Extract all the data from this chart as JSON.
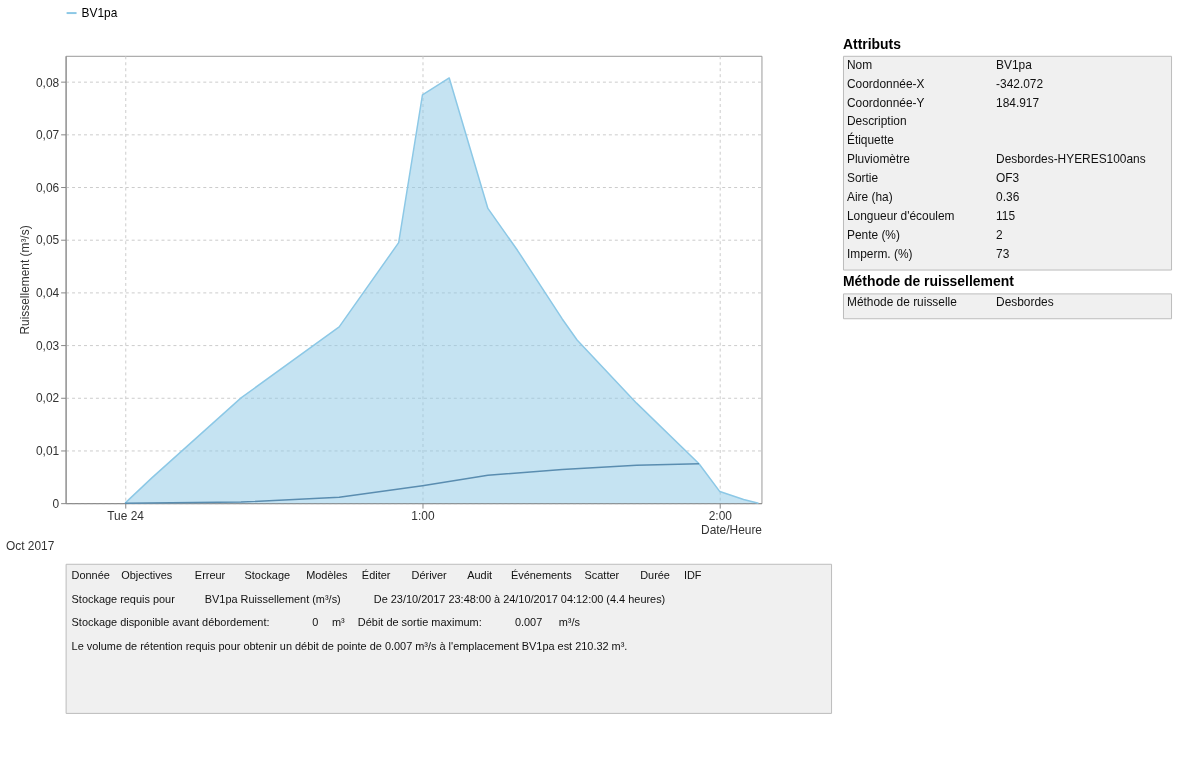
{
  "chart_data": [
    {
      "type": "area",
      "xlabel": "Date/Heure",
      "ylabel": "Ruissellement (m³/s)",
      "x": [
        0,
        0.09,
        0.39,
        0.72,
        0.92,
        1.0,
        1.09,
        1.22,
        1.32,
        1.47,
        1.52,
        1.72,
        1.93,
        2.0,
        2.08,
        2.13
      ],
      "series": [
        {
          "name": "BV1pa",
          "color": "#8cc8e6",
          "values": [
            0,
            0.0048,
            0.02,
            0.0335,
            0.0495,
            0.0776,
            0.0808,
            0.056,
            0.048,
            0.035,
            0.031,
            0.019,
            0.0075,
            0.0022,
            0.0007,
            0
          ]
        },
        {
          "type": "line",
          "color": "#5a8db0",
          "x": [
            0,
            0.39,
            0.72,
            1.0,
            1.22,
            1.47,
            1.72,
            1.93
          ],
          "values": [
            0,
            0.0002,
            0.0011,
            0.0033,
            0.0053,
            0.0064,
            0.0072,
            0.0075
          ]
        }
      ],
      "xlim": [
        -0.2,
        2.14
      ],
      "xticks": [
        {
          "value": 0,
          "label": "Tue 24"
        },
        {
          "value": 1,
          "label": "1:00"
        },
        {
          "value": 2,
          "label": "2:00"
        }
      ],
      "ylim": [
        0,
        0.085
      ],
      "yticks": [
        0,
        {
          "value": 0.01,
          "label": "0,01"
        },
        {
          "value": 0.02,
          "label": "0,02"
        },
        {
          "value": 0.03,
          "label": "0,03"
        },
        {
          "value": 0.04,
          "label": "0,04"
        },
        {
          "value": 0.05,
          "label": "0,05"
        },
        {
          "value": 0.06,
          "label": "0,06"
        },
        {
          "value": 0.07,
          "label": "0,07"
        },
        {
          "value": 0.08,
          "label": "0,08"
        }
      ],
      "grid": true,
      "legend": "top left",
      "annotations": [
        "Oct 2017"
      ]
    },
    {
      "type": "other",
      "annotations": [
        "Donnée",
        "Objectives",
        "Erreur",
        "Stockage",
        "Modèles",
        "Éditer",
        "Dériver",
        "Audit",
        "Événements",
        "Scatter",
        "Durée",
        "IDF",
        "Stockage requis pour",
        "BV1pa Ruissellement (m³/s)",
        "De 23/10/2017 23:48:00 à 24/10/2017 04:12:00 (4.4 heures)",
        "Stockage disponible avant débordement:",
        "0",
        "m³",
        "Débit de sortie maximum:",
        "0.007",
        "m³/s",
        "Le volume de rétention requis pour obtenir un débit de pointe de 0.007 m³/s à l'emplacement BV1pa est 210.32 m³."
      ]
    },
    {
      "type": "other",
      "title": "Attributs",
      "annotations": [
        "Nom",
        "BV1pa",
        "Coordonnée-X",
        "-342.072",
        "Coordonnée-Y",
        "184.917",
        "Description",
        null,
        "Étiquette",
        null,
        "Pluviomètre",
        "Desbordes-HYERES100ans",
        "Sortie",
        "OF3",
        "Aire (ha)",
        "0.36",
        "Longueur d'écoulem",
        "115",
        "Pente (%)",
        "2",
        "Imperm. (%)",
        "73"
      ]
    },
    {
      "type": "other",
      "title": "Méthode de ruissellement",
      "annotations": [
        "Méthode de ruisselle",
        "Desbordes"
      ]
    }
  ]
}
